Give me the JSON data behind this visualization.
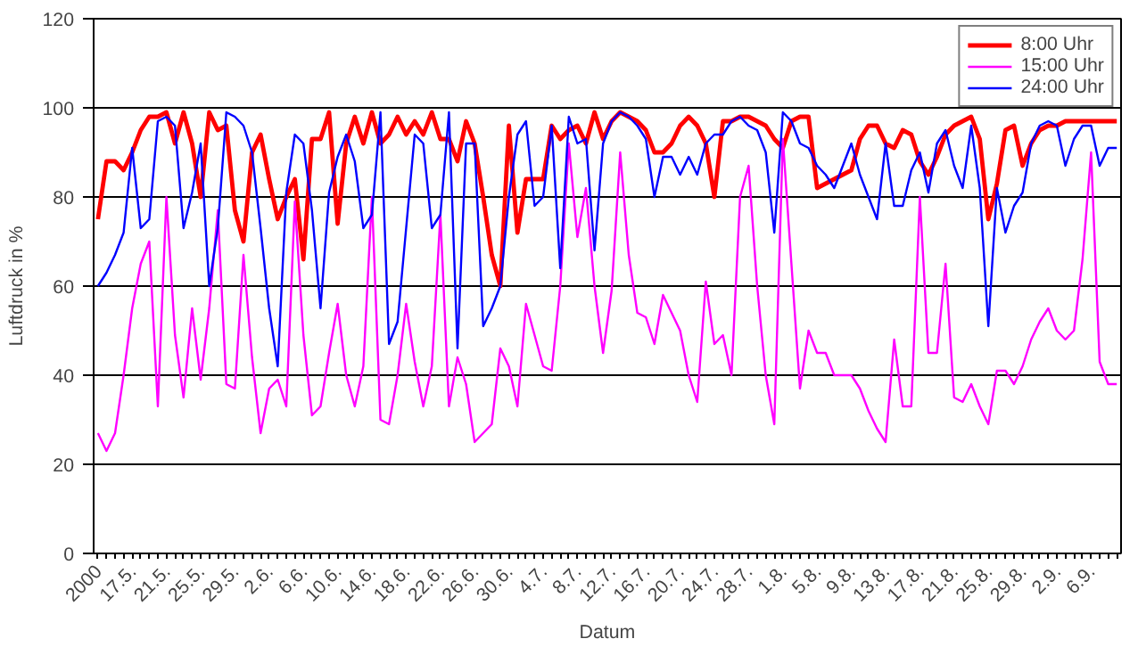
{
  "chart_data": {
    "type": "line",
    "xlabel": "Datum",
    "ylabel": "Luftdruck in %",
    "categories": [
      "2000",
      null,
      null,
      null,
      "17.5.",
      null,
      null,
      null,
      "21.5.",
      null,
      null,
      null,
      "25.5.",
      null,
      null,
      null,
      "29.5.",
      null,
      null,
      null,
      "2.6.",
      null,
      null,
      null,
      "6.6.",
      null,
      null,
      null,
      "10.6.",
      null,
      null,
      null,
      "14.6.",
      null,
      null,
      null,
      "18.6.",
      null,
      null,
      null,
      "22.6.",
      null,
      null,
      null,
      "26.6.",
      null,
      null,
      null,
      "30.6.",
      null,
      null,
      null,
      "4.7.",
      null,
      null,
      null,
      "8.7.",
      null,
      null,
      null,
      "12.7.",
      null,
      null,
      null,
      "16.7.",
      null,
      null,
      null,
      "20.7.",
      null,
      null,
      null,
      "24.7.",
      null,
      null,
      null,
      "28.7.",
      null,
      null,
      null,
      "1.8.",
      null,
      null,
      null,
      "5.8.",
      null,
      null,
      null,
      "9.8.",
      null,
      null,
      null,
      "13.8.",
      null,
      null,
      null,
      "17.8.",
      null,
      null,
      null,
      "21.8.",
      null,
      null,
      null,
      "25.8.",
      null,
      null,
      null,
      "29.8.",
      null,
      null,
      null,
      "2.9.",
      null,
      null,
      null,
      "6.9.",
      null,
      null,
      null
    ],
    "series": [
      {
        "name": "8:00 Uhr",
        "color": "#ff0000",
        "values": [
          75,
          88,
          88,
          86,
          90,
          95,
          98,
          98,
          99,
          92,
          99,
          92,
          80,
          99,
          95,
          96,
          77,
          70,
          90,
          94,
          84,
          75,
          80,
          84,
          66,
          93,
          93,
          99,
          74,
          92,
          98,
          92,
          99,
          92,
          94,
          98,
          94,
          97,
          94,
          99,
          93,
          93,
          88,
          97,
          92,
          80,
          67,
          60,
          96,
          72,
          84,
          84,
          84,
          96,
          93,
          95,
          96,
          92,
          99,
          93,
          97,
          99,
          98,
          97,
          95,
          90,
          90,
          92,
          96,
          98,
          96,
          92,
          80,
          97,
          97,
          98,
          98,
          97,
          96,
          93,
          91,
          97,
          98,
          98,
          82,
          83,
          84,
          85,
          86,
          93,
          96,
          96,
          92,
          91,
          95,
          94,
          88,
          85,
          89,
          94,
          96,
          97,
          98,
          93,
          75,
          83,
          95,
          96,
          87,
          92,
          95,
          96,
          96,
          97,
          97,
          97,
          97,
          97,
          97,
          97
        ]
      },
      {
        "name": "15:00 Uhr",
        "color": "#ff00ff",
        "values": [
          27,
          23,
          27,
          40,
          55,
          65,
          70,
          33,
          80,
          49,
          35,
          55,
          39,
          55,
          77,
          38,
          37,
          67,
          44,
          27,
          37,
          39,
          33,
          79,
          49,
          31,
          33,
          45,
          56,
          40,
          33,
          42,
          80,
          30,
          29,
          40,
          56,
          43,
          33,
          42,
          76,
          33,
          44,
          38,
          25,
          27,
          29,
          46,
          42,
          33,
          56,
          49,
          42,
          41,
          60,
          92,
          71,
          82,
          60,
          45,
          59,
          90,
          67,
          54,
          53,
          47,
          58,
          54,
          50,
          40,
          34,
          61,
          47,
          49,
          40,
          80,
          87,
          60,
          40,
          29,
          93,
          65,
          37,
          50,
          45,
          45,
          40,
          40,
          40,
          37,
          32,
          28,
          25,
          48,
          33,
          33,
          80,
          45,
          45,
          65,
          35,
          34,
          38,
          33,
          29,
          41,
          41,
          38,
          42,
          48,
          52,
          55,
          50,
          48,
          50,
          66,
          90,
          43,
          38,
          38
        ]
      },
      {
        "name": "24:00 Uhr",
        "color": "#0000ff",
        "values": [
          60,
          63,
          67,
          72,
          91,
          73,
          75,
          97,
          98,
          96,
          73,
          81,
          92,
          60,
          73,
          99,
          98,
          96,
          90,
          73,
          55,
          42,
          81,
          94,
          92,
          77,
          55,
          81,
          89,
          94,
          88,
          73,
          76,
          99,
          47,
          52,
          73,
          94,
          92,
          73,
          76,
          99,
          46,
          92,
          92,
          51,
          55,
          60,
          80,
          94,
          97,
          78,
          80,
          96,
          64,
          98,
          92,
          93,
          68,
          92,
          97,
          99,
          98,
          96,
          93,
          80,
          89,
          89,
          85,
          89,
          85,
          92,
          94,
          94,
          97,
          98,
          96,
          95,
          90,
          72,
          99,
          97,
          92,
          91,
          87,
          85,
          82,
          87,
          92,
          85,
          80,
          75,
          92,
          78,
          78,
          86,
          90,
          81,
          92,
          95,
          87,
          82,
          96,
          82,
          51,
          82,
          72,
          78,
          81,
          92,
          96,
          97,
          96,
          87,
          93,
          96,
          96,
          87,
          91,
          91
        ]
      }
    ],
    "ylim": [
      0,
      120
    ],
    "yticks": [
      0,
      20,
      40,
      60,
      80,
      100,
      120
    ],
    "grid": "y",
    "legend": "top right",
    "line_style": "solid",
    "marker": "none"
  }
}
